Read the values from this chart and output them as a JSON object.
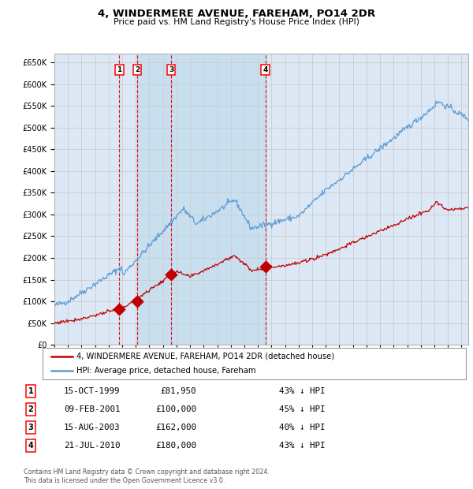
{
  "title": "4, WINDERMERE AVENUE, FAREHAM, PO14 2DR",
  "subtitle": "Price paid vs. HM Land Registry's House Price Index (HPI)",
  "transactions": [
    {
      "num": 1,
      "date": "15-OCT-1999",
      "price": 81950,
      "pct": "43% ↓ HPI",
      "date_dec": 1999.79
    },
    {
      "num": 2,
      "date": "09-FEB-2001",
      "price": 100000,
      "pct": "45% ↓ HPI",
      "date_dec": 2001.11
    },
    {
      "num": 3,
      "date": "15-AUG-2003",
      "price": 162000,
      "pct": "40% ↓ HPI",
      "date_dec": 2003.62
    },
    {
      "num": 4,
      "date": "21-JUL-2010",
      "price": 180000,
      "pct": "43% ↓ HPI",
      "date_dec": 2010.55
    }
  ],
  "legend_property": "4, WINDERMERE AVENUE, FAREHAM, PO14 2DR (detached house)",
  "legend_hpi": "HPI: Average price, detached house, Fareham",
  "footer_line1": "Contains HM Land Registry data © Crown copyright and database right 2024.",
  "footer_line2": "This data is licensed under the Open Government Licence v3.0.",
  "hpi_color": "#5b9bd5",
  "property_color": "#c00000",
  "grid_color": "#cccccc",
  "background_color": "#ffffff",
  "plot_bg_color": "#dce8f5",
  "shaded_region_color": "#c8dff0",
  "ylim": [
    0,
    670000
  ],
  "yticks": [
    0,
    50000,
    100000,
    150000,
    200000,
    250000,
    300000,
    350000,
    400000,
    450000,
    500000,
    550000,
    600000,
    650000
  ],
  "xstart": 1995.0,
  "xend": 2025.5
}
